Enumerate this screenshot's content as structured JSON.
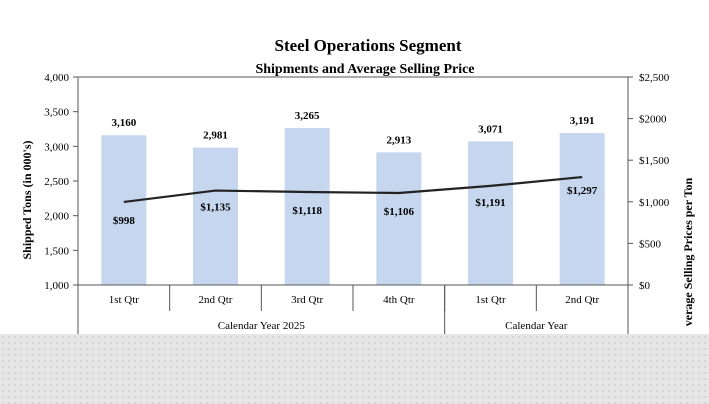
{
  "chart_data": {
    "type": "bar",
    "title": "Steel Operations Segment",
    "subtitle": "Shipments and Average Selling Price",
    "categories": [
      "1st Qtr",
      "2nd Qtr",
      "3rd Qtr",
      "4th Qtr",
      "1st Qtr",
      "2nd Qtr"
    ],
    "groups": [
      {
        "label": "Calendar Year 2025",
        "count": 4
      },
      {
        "label": "Calendar Year",
        "count": 2
      }
    ],
    "series": [
      {
        "type": "bar",
        "axis": "left",
        "color": "#c5d6ee",
        "values": [
          3160,
          2981,
          3265,
          2913,
          3071,
          3191
        ],
        "labels": [
          "3,160",
          "2,981",
          "3,265",
          "2,913",
          "3,071",
          "3,191"
        ]
      },
      {
        "type": "line",
        "axis": "right",
        "color": "#222222",
        "values": [
          998,
          1135,
          1118,
          1106,
          1191,
          1297
        ],
        "labels": [
          "$998",
          "$1,135",
          "$1,118",
          "$1,106",
          "$1,191",
          "$1,297"
        ]
      }
    ],
    "ylabel": "Shipped Tons (in 000's)",
    "ylim": [
      1000,
      4000
    ],
    "yticks": [
      1000,
      1500,
      2000,
      2500,
      3000,
      3500,
      4000
    ],
    "ytick_labels": [
      "1,000",
      "1,500",
      "2,000",
      "2,500",
      "3,000",
      "3,500",
      "4,000"
    ],
    "y2label": "verage Selling Prices per Ton",
    "y2lim": [
      0,
      2500
    ],
    "y2ticks": [
      0,
      500,
      1000,
      1500,
      2000,
      2500
    ],
    "y2tick_labels": [
      "$0",
      "$500",
      "$1,000",
      "$1,500",
      "$2000",
      "$2,500"
    ],
    "grid": false,
    "legend": "none"
  }
}
